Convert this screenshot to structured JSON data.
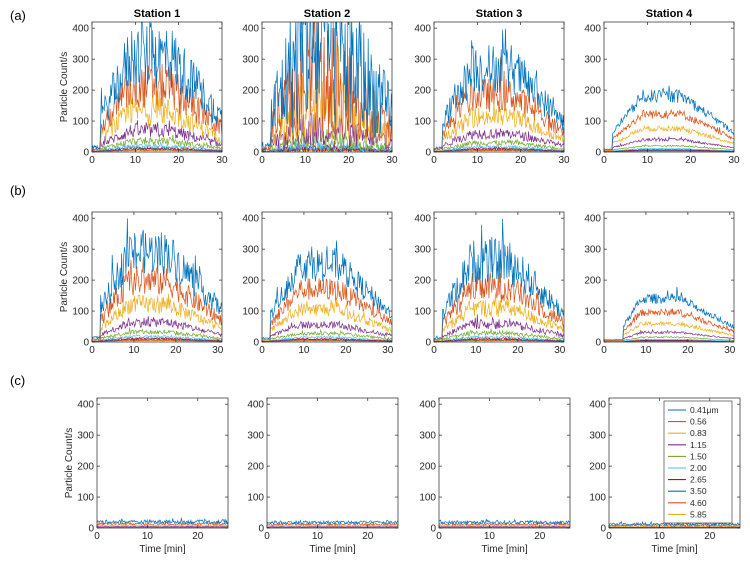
{
  "chart_data": {
    "type": "line",
    "row_labels": [
      "(a)",
      "(b)",
      "(c)"
    ],
    "column_titles": [
      "Station 1",
      "Station 2",
      "Station 3",
      "Station 4"
    ],
    "ylabel": "Particle Count/s",
    "xlabel": "Time [min]",
    "ylim": [
      0,
      420
    ],
    "yticks": [
      0,
      100,
      200,
      300,
      400
    ],
    "rows": [
      {
        "label": "(a)",
        "xlim": [
          0,
          30
        ],
        "xticks": [
          0,
          10,
          20,
          30
        ],
        "amplitude": [
          310,
          330,
          270,
          180
        ],
        "noise": [
          0.35,
          0.8,
          0.3,
          0.12
        ]
      },
      {
        "label": "(b)",
        "xlim": [
          0,
          31
        ],
        "xticks": [
          0,
          10,
          20,
          30
        ],
        "amplitude": [
          290,
          250,
          260,
          140
        ],
        "noise": [
          0.25,
          0.22,
          0.28,
          0.12
        ]
      },
      {
        "label": "(c)",
        "xlim": [
          0,
          26
        ],
        "xticks": [
          0,
          10,
          20
        ],
        "amplitude": [
          20,
          18,
          18,
          13
        ],
        "noise": [
          0.3,
          0.3,
          0.3,
          0.3
        ]
      }
    ],
    "legend": {
      "position": "right, bottom row panel 4",
      "entries": [
        "0.41μm",
        "0.56",
        "0.83",
        "1.15",
        "1.50",
        "2.00",
        "2.65",
        "3.50",
        "4.60",
        "5.85"
      ]
    },
    "series_scale": [
      1.0,
      0.68,
      0.42,
      0.22,
      0.11,
      0.06,
      0.04,
      0.03,
      0.02,
      0.015
    ],
    "colors": [
      "#0072BD",
      "#D95319",
      "#EDB120",
      "#7E2F8E",
      "#77AC30",
      "#4DBEEE",
      "#A2142F",
      "#0072BD",
      "#D95319",
      "#EDB120"
    ]
  }
}
